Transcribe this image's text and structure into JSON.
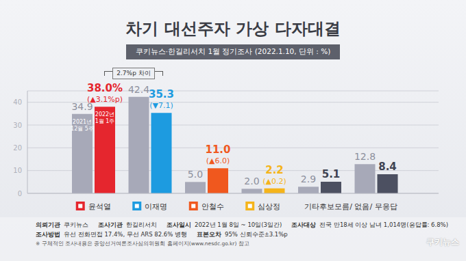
{
  "chart_data": {
    "type": "bar",
    "title": "차기 대선주자 가상 다자대결",
    "subtitle": "쿠키뉴스·한길리서치 1월 정기조사 (2022.1.10, 단위 : %)",
    "annotation": "2.7%p 차이",
    "categories": [
      "윤석열",
      "이재명",
      "안철수",
      "심상정",
      "기타후보",
      "모름/ 없음/ 무응답"
    ],
    "series": [
      {
        "name": "2021년 12월 5주",
        "color": "#a7a9b8",
        "values": [
          34.9,
          42.4,
          5.0,
          2.0,
          2.9,
          12.8
        ],
        "value_labels": [
          "34.9",
          "42.4",
          "5.0",
          "2.0",
          "2.9",
          "12.8"
        ]
      },
      {
        "name": "2022년 1월 1주",
        "colors": [
          "#e5262e",
          "#1d9be0",
          "#f0581e",
          "#f5b41a",
          "#4c5061",
          "#4c5061"
        ],
        "values": [
          38.0,
          35.3,
          11.0,
          2.2,
          5.1,
          8.4
        ],
        "value_labels": [
          "38.0%",
          "35.3",
          "11.0",
          "2.2",
          "5.1",
          "8.4"
        ],
        "changes": [
          3.1,
          -7.1,
          6.0,
          0.2,
          null,
          null
        ],
        "change_labels": [
          "(▲3.1%p)",
          "(▼7.1)",
          "(▲6.0)",
          "(▲0.2)",
          null,
          null
        ]
      }
    ],
    "ylim": [
      0,
      45
    ],
    "yticks": [
      0,
      10,
      20,
      30,
      40
    ],
    "grid": true,
    "data_labels": true
  },
  "footer": {
    "rows": [
      [
        [
          "의뢰기관",
          "쿠키뉴스"
        ],
        [
          "조사기관",
          "한길리서치"
        ],
        [
          "조사일시",
          "2022년 1월 8일 ~ 10일(3일간)"
        ],
        [
          "조사대상",
          "전국 만18세 이상 남녀 1,014명(응답률: 6.8%)"
        ]
      ],
      [
        [
          "조사방법",
          "유선 전화면접 17.4%, 무선 ARS 82.6% 병행"
        ],
        [
          "표본오차",
          "95% 신뢰수준±3.1%p"
        ]
      ]
    ],
    "note": "※ 구체적인 조사내용은 중앙선거여론조사심의위원회 홈페이지(www.nesdc.go.kr) 참고"
  },
  "logo": "쿠키뉴스"
}
